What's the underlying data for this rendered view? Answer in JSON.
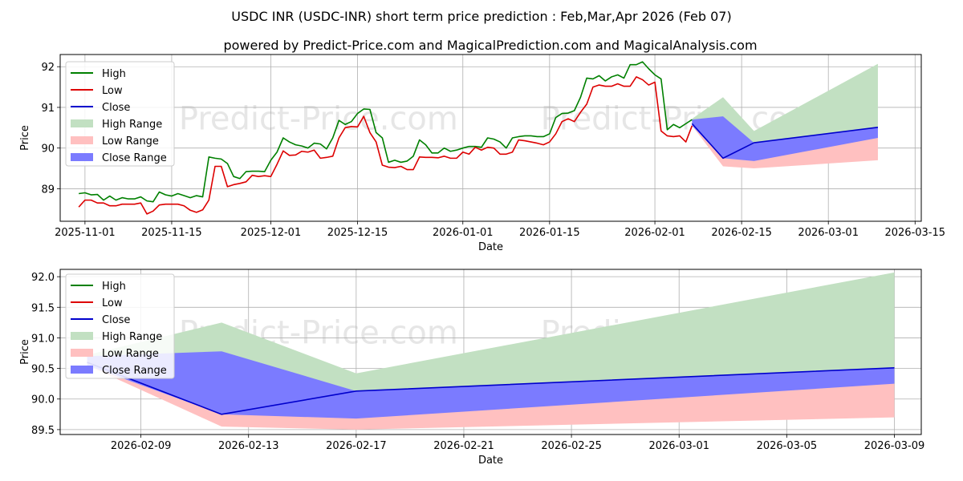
{
  "title": "USDC INR (USDC-INR) short term price prediction : Feb,Mar,Apr 2026 (Feb 07)",
  "subtitle": "powered by Predict-Price.com and MagicalPrediction.com and MagicalAnalysis.com",
  "watermark": "Predict-Price.com",
  "colors": {
    "high": "#008000",
    "low": "#dd0000",
    "close": "#0000cc",
    "high_range": "#c2e0c2",
    "low_range": "#ffc0c0",
    "close_range": "#7b7bff"
  },
  "legend": [
    "High",
    "Low",
    "Close",
    "High Range",
    "Low Range",
    "Close Range"
  ],
  "chart_data": [
    {
      "type": "line",
      "name": "full-history",
      "xlabel": "Date",
      "ylabel": "Price",
      "xlim": [
        "2025-10-28",
        "2026-03-16"
      ],
      "ylim": [
        88.2,
        92.3
      ],
      "xticks": [
        "2025-11-01",
        "2025-11-15",
        "2025-12-01",
        "2025-12-15",
        "2026-01-01",
        "2026-01-15",
        "2026-02-01",
        "2026-02-15",
        "2026-03-01",
        "2026-03-15"
      ],
      "yticks": [
        89,
        90,
        91,
        92
      ],
      "high": [
        [
          "2025-10-31",
          88.88
        ],
        [
          "2025-11-01",
          88.9
        ],
        [
          "2025-11-02",
          88.85
        ],
        [
          "2025-11-03",
          88.86
        ],
        [
          "2025-11-04",
          88.72
        ],
        [
          "2025-11-05",
          88.82
        ],
        [
          "2025-11-06",
          88.72
        ],
        [
          "2025-11-07",
          88.78
        ],
        [
          "2025-11-08",
          88.75
        ],
        [
          "2025-11-09",
          88.75
        ],
        [
          "2025-11-10",
          88.8
        ],
        [
          "2025-11-11",
          88.7
        ],
        [
          "2025-11-12",
          88.68
        ],
        [
          "2025-11-13",
          88.92
        ],
        [
          "2025-11-14",
          88.85
        ],
        [
          "2025-11-15",
          88.82
        ],
        [
          "2025-11-16",
          88.88
        ],
        [
          "2025-11-17",
          88.83
        ],
        [
          "2025-11-18",
          88.78
        ],
        [
          "2025-11-19",
          88.83
        ],
        [
          "2025-11-20",
          88.8
        ],
        [
          "2025-11-21",
          89.78
        ],
        [
          "2025-11-22",
          89.75
        ],
        [
          "2025-11-23",
          89.73
        ],
        [
          "2025-11-24",
          89.62
        ],
        [
          "2025-11-25",
          89.3
        ],
        [
          "2025-11-26",
          89.25
        ],
        [
          "2025-11-27",
          89.42
        ],
        [
          "2025-11-28",
          89.43
        ],
        [
          "2025-11-29",
          89.43
        ],
        [
          "2025-11-30",
          89.42
        ],
        [
          "2025-12-01",
          89.7
        ],
        [
          "2025-12-02",
          89.9
        ],
        [
          "2025-12-03",
          90.25
        ],
        [
          "2025-12-04",
          90.15
        ],
        [
          "2025-12-05",
          90.08
        ],
        [
          "2025-12-06",
          90.05
        ],
        [
          "2025-12-07",
          90.0
        ],
        [
          "2025-12-08",
          90.12
        ],
        [
          "2025-12-09",
          90.1
        ],
        [
          "2025-12-10",
          89.98
        ],
        [
          "2025-12-11",
          90.25
        ],
        [
          "2025-12-12",
          90.68
        ],
        [
          "2025-12-13",
          90.58
        ],
        [
          "2025-12-14",
          90.65
        ],
        [
          "2025-12-15",
          90.85
        ],
        [
          "2025-12-16",
          90.96
        ],
        [
          "2025-12-17",
          90.95
        ],
        [
          "2025-12-18",
          90.38
        ],
        [
          "2025-12-19",
          90.25
        ],
        [
          "2025-12-20",
          89.65
        ],
        [
          "2025-12-21",
          89.7
        ],
        [
          "2025-12-22",
          89.65
        ],
        [
          "2025-12-23",
          89.68
        ],
        [
          "2025-12-24",
          89.8
        ],
        [
          "2025-12-25",
          90.2
        ],
        [
          "2025-12-26",
          90.08
        ],
        [
          "2025-12-27",
          89.88
        ],
        [
          "2025-12-28",
          89.88
        ],
        [
          "2025-12-29",
          90.0
        ],
        [
          "2025-12-30",
          89.92
        ],
        [
          "2025-12-31",
          89.95
        ],
        [
          "2026-01-01",
          90.0
        ],
        [
          "2026-01-02",
          90.04
        ],
        [
          "2026-01-03",
          90.04
        ],
        [
          "2026-01-04",
          90.02
        ],
        [
          "2026-01-05",
          90.25
        ],
        [
          "2026-01-06",
          90.22
        ],
        [
          "2026-01-07",
          90.15
        ],
        [
          "2026-01-08",
          90.0
        ],
        [
          "2026-01-09",
          90.25
        ],
        [
          "2026-01-10",
          90.28
        ],
        [
          "2026-01-11",
          90.3
        ],
        [
          "2026-01-12",
          90.3
        ],
        [
          "2026-01-13",
          90.28
        ],
        [
          "2026-01-14",
          90.28
        ],
        [
          "2026-01-15",
          90.35
        ],
        [
          "2026-01-16",
          90.75
        ],
        [
          "2026-01-17",
          90.85
        ],
        [
          "2026-01-18",
          90.86
        ],
        [
          "2026-01-19",
          90.92
        ],
        [
          "2026-01-20",
          91.25
        ],
        [
          "2026-01-21",
          91.72
        ],
        [
          "2026-01-22",
          91.7
        ],
        [
          "2026-01-23",
          91.78
        ],
        [
          "2026-01-24",
          91.65
        ],
        [
          "2026-01-25",
          91.75
        ],
        [
          "2026-01-26",
          91.8
        ],
        [
          "2026-01-27",
          91.72
        ],
        [
          "2026-01-28",
          92.05
        ],
        [
          "2026-01-29",
          92.05
        ],
        [
          "2026-01-30",
          92.12
        ],
        [
          "2026-01-31",
          91.95
        ],
        [
          "2026-02-01",
          91.8
        ],
        [
          "2026-02-02",
          91.7
        ],
        [
          "2026-02-03",
          90.45
        ],
        [
          "2026-02-04",
          90.58
        ],
        [
          "2026-02-05",
          90.5
        ],
        [
          "2026-02-06",
          90.6
        ],
        [
          "2026-02-07",
          90.7
        ]
      ],
      "low": [
        [
          "2025-10-31",
          88.55
        ],
        [
          "2025-11-01",
          88.72
        ],
        [
          "2025-11-02",
          88.72
        ],
        [
          "2025-11-03",
          88.65
        ],
        [
          "2025-11-04",
          88.65
        ],
        [
          "2025-11-05",
          88.58
        ],
        [
          "2025-11-06",
          88.58
        ],
        [
          "2025-11-07",
          88.62
        ],
        [
          "2025-11-08",
          88.62
        ],
        [
          "2025-11-09",
          88.62
        ],
        [
          "2025-11-10",
          88.65
        ],
        [
          "2025-11-11",
          88.38
        ],
        [
          "2025-11-12",
          88.45
        ],
        [
          "2025-11-13",
          88.6
        ],
        [
          "2025-11-14",
          88.62
        ],
        [
          "2025-11-15",
          88.62
        ],
        [
          "2025-11-16",
          88.62
        ],
        [
          "2025-11-17",
          88.58
        ],
        [
          "2025-11-18",
          88.47
        ],
        [
          "2025-11-19",
          88.42
        ],
        [
          "2025-11-20",
          88.48
        ],
        [
          "2025-11-21",
          88.72
        ],
        [
          "2025-11-22",
          89.55
        ],
        [
          "2025-11-23",
          89.55
        ],
        [
          "2025-11-24",
          89.05
        ],
        [
          "2025-11-25",
          89.1
        ],
        [
          "2025-11-26",
          89.13
        ],
        [
          "2025-11-27",
          89.17
        ],
        [
          "2025-11-28",
          89.33
        ],
        [
          "2025-11-29",
          89.3
        ],
        [
          "2025-11-30",
          89.32
        ],
        [
          "2025-12-01",
          89.3
        ],
        [
          "2025-12-02",
          89.6
        ],
        [
          "2025-12-03",
          89.93
        ],
        [
          "2025-12-04",
          89.82
        ],
        [
          "2025-12-05",
          89.83
        ],
        [
          "2025-12-06",
          89.92
        ],
        [
          "2025-12-07",
          89.9
        ],
        [
          "2025-12-08",
          89.95
        ],
        [
          "2025-12-09",
          89.75
        ],
        [
          "2025-12-10",
          89.77
        ],
        [
          "2025-12-11",
          89.8
        ],
        [
          "2025-12-12",
          90.25
        ],
        [
          "2025-12-13",
          90.5
        ],
        [
          "2025-12-14",
          90.53
        ],
        [
          "2025-12-15",
          90.52
        ],
        [
          "2025-12-16",
          90.78
        ],
        [
          "2025-12-17",
          90.38
        ],
        [
          "2025-12-18",
          90.15
        ],
        [
          "2025-12-19",
          89.58
        ],
        [
          "2025-12-20",
          89.53
        ],
        [
          "2025-12-21",
          89.52
        ],
        [
          "2025-12-22",
          89.55
        ],
        [
          "2025-12-23",
          89.47
        ],
        [
          "2025-12-24",
          89.47
        ],
        [
          "2025-12-25",
          89.78
        ],
        [
          "2025-12-26",
          89.77
        ],
        [
          "2025-12-27",
          89.77
        ],
        [
          "2025-12-28",
          89.76
        ],
        [
          "2025-12-29",
          89.8
        ],
        [
          "2025-12-30",
          89.75
        ],
        [
          "2025-12-31",
          89.75
        ],
        [
          "2026-01-01",
          89.9
        ],
        [
          "2026-01-02",
          89.85
        ],
        [
          "2026-01-03",
          90.02
        ],
        [
          "2026-01-04",
          89.95
        ],
        [
          "2026-01-05",
          90.02
        ],
        [
          "2026-01-06",
          90.0
        ],
        [
          "2026-01-07",
          89.85
        ],
        [
          "2026-01-08",
          89.85
        ],
        [
          "2026-01-09",
          89.9
        ],
        [
          "2026-01-10",
          90.2
        ],
        [
          "2026-01-11",
          90.18
        ],
        [
          "2026-01-12",
          90.15
        ],
        [
          "2026-01-13",
          90.12
        ],
        [
          "2026-01-14",
          90.08
        ],
        [
          "2026-01-15",
          90.15
        ],
        [
          "2026-01-16",
          90.35
        ],
        [
          "2026-01-17",
          90.65
        ],
        [
          "2026-01-18",
          90.72
        ],
        [
          "2026-01-19",
          90.65
        ],
        [
          "2026-01-20",
          90.88
        ],
        [
          "2026-01-21",
          91.08
        ],
        [
          "2026-01-22",
          91.5
        ],
        [
          "2026-01-23",
          91.55
        ],
        [
          "2026-01-24",
          91.52
        ],
        [
          "2026-01-25",
          91.52
        ],
        [
          "2026-01-26",
          91.58
        ],
        [
          "2026-01-27",
          91.52
        ],
        [
          "2026-01-28",
          91.52
        ],
        [
          "2026-01-29",
          91.75
        ],
        [
          "2026-01-30",
          91.68
        ],
        [
          "2026-01-31",
          91.55
        ],
        [
          "2026-02-01",
          91.62
        ],
        [
          "2026-02-02",
          90.42
        ],
        [
          "2026-02-03",
          90.3
        ],
        [
          "2026-02-04",
          90.28
        ],
        [
          "2026-02-05",
          90.3
        ],
        [
          "2026-02-06",
          90.15
        ],
        [
          "2026-02-07",
          90.55
        ]
      ],
      "close": [
        [
          "2026-02-07",
          90.6
        ],
        [
          "2026-02-12",
          89.75
        ],
        [
          "2026-02-17",
          90.13
        ],
        [
          "2026-03-09",
          90.51
        ]
      ],
      "high_range": {
        "x": [
          "2026-02-07",
          "2026-02-12",
          "2026-02-17",
          "2026-03-09"
        ],
        "upper": [
          90.72,
          91.25,
          90.42,
          92.07
        ],
        "lower": [
          90.6,
          89.75,
          90.13,
          90.51
        ]
      },
      "low_range": {
        "x": [
          "2026-02-07",
          "2026-02-12",
          "2026-02-17",
          "2026-03-09"
        ],
        "upper": [
          90.55,
          89.75,
          90.13,
          90.27
        ],
        "lower": [
          90.55,
          89.55,
          89.5,
          89.7
        ]
      },
      "close_range": {
        "x": [
          "2026-02-07",
          "2026-02-12",
          "2026-02-17",
          "2026-03-09"
        ],
        "upper": [
          90.7,
          90.78,
          90.13,
          90.51
        ],
        "lower": [
          90.55,
          89.75,
          89.68,
          90.25
        ]
      }
    },
    {
      "type": "line",
      "name": "forecast-zoom",
      "xlabel": "Date",
      "ylabel": "Price",
      "xlim": [
        "2026-02-06",
        "2026-03-10"
      ],
      "ylim": [
        89.42,
        92.12
      ],
      "xticks": [
        "2026-02-09",
        "2026-02-13",
        "2026-02-17",
        "2026-02-21",
        "2026-02-25",
        "2026-03-01",
        "2026-03-05",
        "2026-03-09"
      ],
      "yticks": [
        89.5,
        90.0,
        90.5,
        91.0,
        91.5,
        92.0
      ],
      "close": [
        [
          "2026-02-07",
          90.6
        ],
        [
          "2026-02-12",
          89.75
        ],
        [
          "2026-02-17",
          90.13
        ],
        [
          "2026-03-09",
          90.51
        ]
      ],
      "high_range": {
        "x": [
          "2026-02-07",
          "2026-02-12",
          "2026-02-17",
          "2026-03-09"
        ],
        "upper": [
          90.72,
          91.25,
          90.42,
          92.07
        ],
        "lower": [
          90.6,
          89.75,
          90.13,
          90.51
        ]
      },
      "low_range": {
        "x": [
          "2026-02-07",
          "2026-02-12",
          "2026-02-17",
          "2026-03-09"
        ],
        "upper": [
          90.55,
          89.75,
          90.13,
          90.27
        ],
        "lower": [
          90.55,
          89.55,
          89.5,
          89.7
        ]
      },
      "close_range": {
        "x": [
          "2026-02-07",
          "2026-02-12",
          "2026-02-17",
          "2026-03-09"
        ],
        "upper": [
          90.7,
          90.78,
          90.13,
          90.51
        ],
        "lower": [
          90.55,
          89.75,
          89.68,
          90.25
        ]
      }
    }
  ]
}
